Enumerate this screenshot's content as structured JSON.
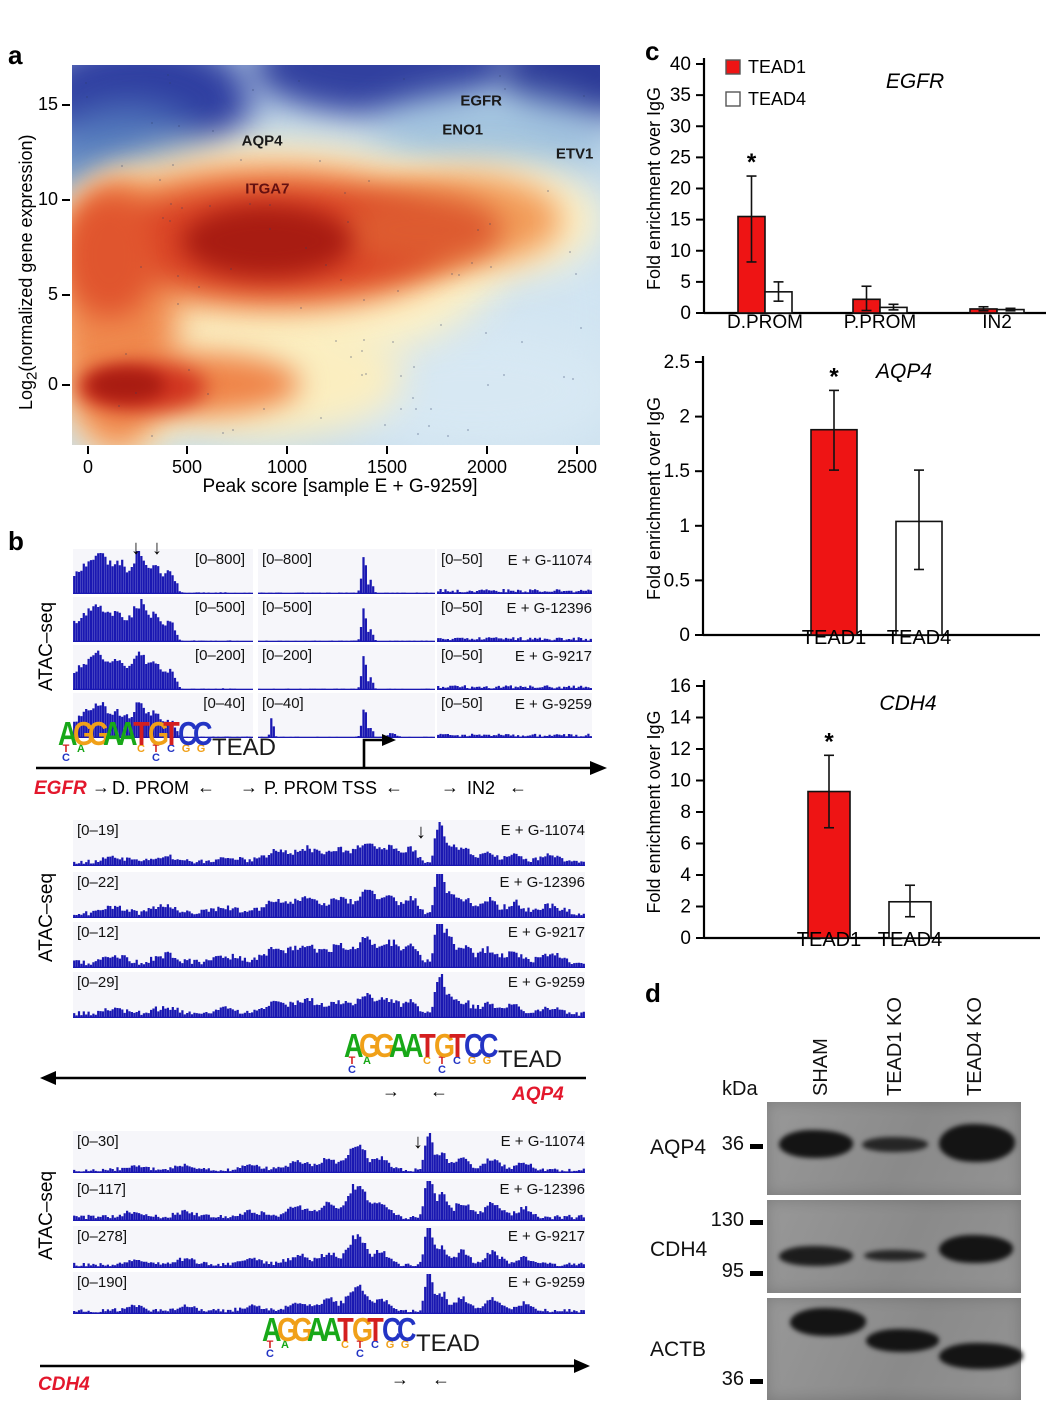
{
  "panels": {
    "a_label": "a",
    "b_label": "b",
    "c_label": "c",
    "d_label": "d"
  },
  "colors": {
    "tead1_red": "#ee1414",
    "track_blue": "#1a18b2",
    "gene_red": "#e3172c",
    "logo_green": "#18a818",
    "logo_orange": "#f0a018",
    "logo_red": "#d41f1f",
    "logo_blue": "#2334c4"
  },
  "panel_a": {
    "ylabel_prefix": "Log",
    "ylabel_sub": "2",
    "ylabel_suffix": "(normalized gene expression)",
    "xlabel": "Peak score [sample  E + G-9259]",
    "yticks": [
      "15",
      "10",
      "5",
      "0"
    ],
    "xticks": [
      "0",
      "500",
      "1000",
      "1500",
      "2000",
      "2500"
    ],
    "gene_labels": [
      {
        "label": "AQP4",
        "fx": 0.36,
        "fy": 0.2,
        "color": "#1a1a1a"
      },
      {
        "label": "ITGA7",
        "fx": 0.37,
        "fy": 0.325,
        "color": "#641010"
      },
      {
        "label": "EGFR",
        "fx": 0.775,
        "fy": 0.095,
        "color": "#1a1a1a"
      },
      {
        "label": "ENO1",
        "fx": 0.74,
        "fy": 0.17,
        "color": "#1a1a1a"
      },
      {
        "label": "ETV1",
        "fx": 0.952,
        "fy": 0.235,
        "color": "#1a1a1a"
      }
    ]
  },
  "chart_data": [
    {
      "id": "panel_a_density",
      "type": "heatmap",
      "title": "",
      "xlabel": "Peak score [sample E + G-9259]",
      "ylabel": "Log2(normalized gene expression)",
      "xlim": [
        0,
        2500
      ],
      "ylim": [
        -3,
        17
      ],
      "xticks": [
        0,
        500,
        1000,
        1500,
        2000,
        2500
      ],
      "yticks": [
        0,
        5,
        10,
        15
      ],
      "colormap": "RdYlBu-reversed density (blue=low, dark red=high)",
      "annotations": [
        {
          "label": "AQP4",
          "x": 880,
          "y": 12.7
        },
        {
          "label": "ITGA7",
          "x": 905,
          "y": 10.3
        },
        {
          "label": "EGFR",
          "x": 1970,
          "y": 14.8
        },
        {
          "label": "ENO1",
          "x": 1880,
          "y": 13.4
        },
        {
          "label": "ETV1",
          "x": 2450,
          "y": 12.1
        }
      ],
      "density_maxima": [
        {
          "x": 900,
          "y": 9.8
        },
        {
          "x": 130,
          "y": 0
        }
      ]
    },
    {
      "id": "chip_egfr",
      "type": "bar",
      "title": "EGFR",
      "ylabel": "Fold enrichment over IgG",
      "ylim": [
        0,
        40
      ],
      "ytick_step": 5,
      "categories": [
        "D.PROM",
        "P.PROM",
        "IN2"
      ],
      "series": [
        {
          "name": "TEAD1",
          "fill": "#ee1414",
          "values": [
            15.5,
            2.2,
            0.65
          ],
          "err_up": [
            6.5,
            2.1,
            0.35
          ],
          "err_dn": [
            7.3,
            1.8,
            0.3
          ],
          "sig": [
            "*",
            "",
            ""
          ]
        },
        {
          "name": "TEAD4",
          "fill": "#ffffff",
          "values": [
            3.4,
            0.9,
            0.55
          ],
          "err_up": [
            1.6,
            0.5,
            0.2
          ],
          "err_dn": [
            1.5,
            0.4,
            0.2
          ],
          "sig": [
            "",
            "",
            ""
          ]
        }
      ],
      "legend_position": "top-left"
    },
    {
      "id": "chip_aqp4",
      "type": "bar",
      "title": "AQP4",
      "ylabel": "Fold enrichment over IgG",
      "ylim": [
        0,
        2.5
      ],
      "ytick_step": 0.5,
      "categories": [
        "TEAD1",
        "TEAD4"
      ],
      "series": [
        {
          "name": "enrichment",
          "values": [
            1.88,
            1.04
          ],
          "err_up": [
            0.36,
            0.47
          ],
          "err_dn": [
            0.37,
            0.44
          ],
          "fills": [
            "#ee1414",
            "#ffffff"
          ],
          "sig": [
            "*",
            ""
          ]
        }
      ]
    },
    {
      "id": "chip_cdh4",
      "type": "bar",
      "title": "CDH4",
      "ylabel": "Fold enrichment over IgG",
      "ylim": [
        0,
        16
      ],
      "ytick_step": 2,
      "categories": [
        "TEAD1",
        "TEAD4"
      ],
      "series": [
        {
          "name": "enrichment",
          "values": [
            9.3,
            2.3
          ],
          "err_up": [
            2.3,
            1.05
          ],
          "err_dn": [
            2.3,
            0.95
          ],
          "fills": [
            "#ee1414",
            "#ffffff"
          ],
          "sig": [
            "*",
            ""
          ]
        }
      ]
    }
  ],
  "panel_b": {
    "atac_label": "ATAC–seq",
    "tead_label": "TEAD",
    "peak_arrow": "↓",
    "arrow_right": "→",
    "arrow_left": "←",
    "logo_positions": [
      {
        "main": "A",
        "color": "green",
        "subs": [
          [
            "T",
            "red"
          ],
          [
            "C",
            "blue"
          ]
        ]
      },
      {
        "main": "G",
        "color": "orange",
        "subs": [
          [
            "A",
            "green"
          ]
        ]
      },
      {
        "main": "G",
        "color": "orange",
        "subs": []
      },
      {
        "main": "A",
        "color": "green",
        "subs": []
      },
      {
        "main": "A",
        "color": "green",
        "subs": []
      },
      {
        "main": "T",
        "color": "red",
        "subs": [
          [
            "C",
            "orange"
          ]
        ]
      },
      {
        "main": "G",
        "color": "orange",
        "subs": [
          [
            "T",
            "red"
          ],
          [
            "C",
            "blue"
          ]
        ]
      },
      {
        "main": "T",
        "color": "red",
        "subs": [
          [
            "C",
            "blue"
          ]
        ]
      },
      {
        "main": "C",
        "color": "blue",
        "subs": [
          [
            "G",
            "orange"
          ]
        ]
      },
      {
        "main": "C",
        "color": "blue",
        "subs": [
          [
            "G",
            "orange"
          ]
        ]
      }
    ],
    "sections": {
      "egfr": {
        "gene": "EGFR",
        "region_labels": {
          "d_prom": "D. PROM",
          "p_prom": "P. PROM",
          "tss": "TSS",
          "in2": "IN2"
        },
        "rows": [
          {
            "ranges": [
              "[0–800]",
              "[0–800]",
              "[0–50]"
            ],
            "sample": "E + G-11074"
          },
          {
            "ranges": [
              "[0–500]",
              "[0–500]",
              "[0–50]"
            ],
            "sample": "E + G-12396"
          },
          {
            "ranges": [
              "[0–200]",
              "[0–200]",
              "[0–50]"
            ],
            "sample": "E + G-9217"
          },
          {
            "ranges": [
              "[0–40]",
              "[0–40]",
              "[0–50]"
            ],
            "sample": "E + G-9259"
          }
        ],
        "row_gains": [
          1,
          0.95,
          0.92,
          0.85
        ],
        "columns": [
          {
            "base": 0.13,
            "cut": 0.58,
            "tail": 0.035,
            "peaks": [
              {
                "c": 0.05,
                "w": 0.05,
                "h": 0.5
              },
              {
                "c": 0.15,
                "w": 0.045,
                "h": 0.8
              },
              {
                "c": 0.26,
                "w": 0.04,
                "h": 0.62
              },
              {
                "c": 0.37,
                "w": 0.035,
                "h": 0.88
              },
              {
                "c": 0.46,
                "w": 0.03,
                "h": 0.6
              },
              {
                "c": 0.54,
                "w": 0.025,
                "h": 0.42
              }
            ]
          },
          {
            "base": 0.03,
            "peaks": [
              {
                "c": 0.6,
                "w": 0.013,
                "h": 0.82
              },
              {
                "c": 0.64,
                "w": 0.01,
                "h": 0.3
              }
            ]
          },
          {
            "base": 0.1,
            "peaks": []
          }
        ],
        "track4_extra": [
          {
            "c": 0.08,
            "w": 0.009,
            "h": 0.6
          },
          {
            "c": 0.76,
            "w": 0.02,
            "h": 0.12
          }
        ]
      },
      "aqp4": {
        "gene": "AQP4",
        "rows": [
          {
            "range": "[0–19]",
            "sample": "E + G-11074"
          },
          {
            "range": "[0–22]",
            "sample": "E + G-12396"
          },
          {
            "range": "[0–12]",
            "sample": "E + G-9217"
          },
          {
            "range": "[0–29]",
            "sample": "E + G-9259"
          }
        ],
        "row_gains": [
          1,
          1.18,
          1.3,
          1.0
        ],
        "base": 0.13,
        "peaks": [
          {
            "c": 0.08,
            "w": 0.02,
            "h": 0.12
          },
          {
            "c": 0.18,
            "w": 0.02,
            "h": 0.15
          },
          {
            "c": 0.3,
            "w": 0.02,
            "h": 0.12
          },
          {
            "c": 0.4,
            "w": 0.025,
            "h": 0.25
          },
          {
            "c": 0.46,
            "w": 0.02,
            "h": 0.3
          },
          {
            "c": 0.52,
            "w": 0.02,
            "h": 0.28
          },
          {
            "c": 0.575,
            "w": 0.018,
            "h": 0.45
          },
          {
            "c": 0.62,
            "w": 0.015,
            "h": 0.35
          },
          {
            "c": 0.66,
            "w": 0.012,
            "h": 0.3
          },
          {
            "c": 0.715,
            "w": 0.007,
            "h": 1.0
          },
          {
            "c": 0.735,
            "w": 0.01,
            "h": 0.45
          },
          {
            "c": 0.765,
            "w": 0.012,
            "h": 0.3
          },
          {
            "c": 0.81,
            "w": 0.015,
            "h": 0.25
          },
          {
            "c": 0.86,
            "w": 0.015,
            "h": 0.2
          },
          {
            "c": 0.93,
            "w": 0.02,
            "h": 0.15
          }
        ]
      },
      "cdh4": {
        "gene": "CDH4",
        "rows": [
          {
            "range": "[0–30]",
            "sample": "E + G-11074"
          },
          {
            "range": "[0–117]",
            "sample": "E + G-12396"
          },
          {
            "range": "[0–278]",
            "sample": "E + G-9217"
          },
          {
            "range": "[0–190]",
            "sample": "E + G-9259"
          }
        ],
        "row_gains": [
          1,
          1.28,
          1.12,
          1.05
        ],
        "base": 0.1,
        "peaks": [
          {
            "c": 0.12,
            "w": 0.02,
            "h": 0.1
          },
          {
            "c": 0.22,
            "w": 0.02,
            "h": 0.12
          },
          {
            "c": 0.35,
            "w": 0.02,
            "h": 0.12
          },
          {
            "c": 0.44,
            "w": 0.02,
            "h": 0.22
          },
          {
            "c": 0.5,
            "w": 0.015,
            "h": 0.3
          },
          {
            "c": 0.545,
            "w": 0.012,
            "h": 0.5
          },
          {
            "c": 0.565,
            "w": 0.01,
            "h": 0.45
          },
          {
            "c": 0.6,
            "w": 0.015,
            "h": 0.3
          },
          {
            "c": 0.695,
            "w": 0.007,
            "h": 1.0
          },
          {
            "c": 0.72,
            "w": 0.01,
            "h": 0.45
          },
          {
            "c": 0.76,
            "w": 0.013,
            "h": 0.33
          },
          {
            "c": 0.82,
            "w": 0.015,
            "h": 0.28
          },
          {
            "c": 0.88,
            "w": 0.015,
            "h": 0.18
          }
        ]
      }
    }
  },
  "panel_d": {
    "kda_label": "kDa",
    "lanes": [
      "SHAM",
      "TEAD1 KO",
      "TEAD4 KO"
    ],
    "blots": [
      {
        "protein": "AQP4",
        "markers": [
          {
            "label": "36",
            "fy": 0.47
          }
        ],
        "bands": [
          "strong",
          "weak",
          "strong"
        ]
      },
      {
        "protein": "CDH4",
        "markers": [
          {
            "label": "130",
            "fy": 0.24
          },
          {
            "label": "95",
            "fy": 0.78
          }
        ],
        "bands": [
          "medium",
          "weak",
          "strong"
        ]
      },
      {
        "protein": "ACTB",
        "markers": [
          {
            "label": "36",
            "fy": 0.81
          }
        ],
        "bands": [
          "strong",
          "strong",
          "strong"
        ]
      }
    ]
  }
}
